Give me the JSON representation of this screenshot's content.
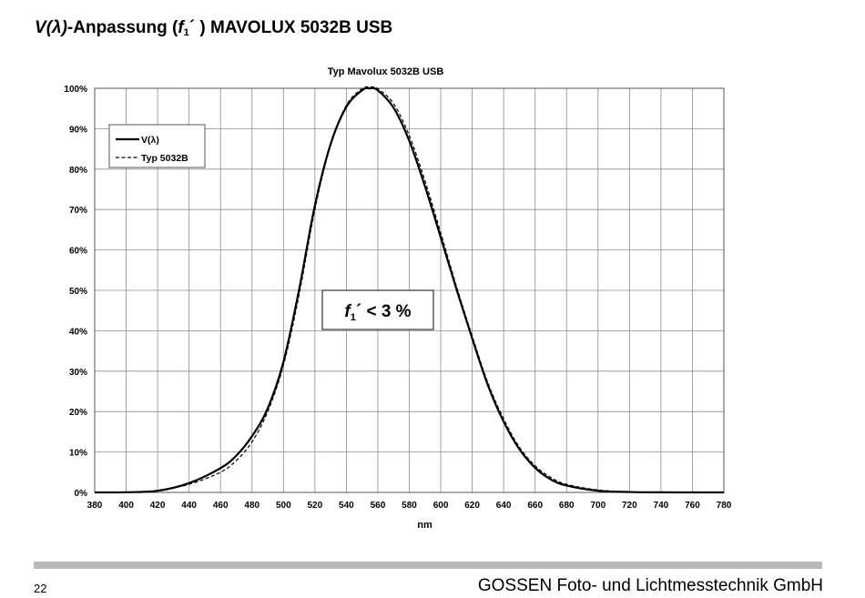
{
  "heading": {
    "v": "V",
    "lambda": "λ",
    "suffix_anpassung": "-Anpassung (",
    "f": "f",
    "sub": "1",
    "prime_close": "´ ) MAVOLUX 5032B USB"
  },
  "chart_data": {
    "type": "line",
    "title": "Typ Mavolux 5032B USB",
    "xlabel": "nm",
    "ylabel": "",
    "xlim": [
      380,
      780
    ],
    "ylim": [
      0,
      100
    ],
    "x_ticks": [
      380,
      400,
      420,
      440,
      460,
      480,
      500,
      520,
      540,
      560,
      580,
      600,
      620,
      640,
      660,
      680,
      700,
      720,
      740,
      760,
      780
    ],
    "y_ticks": [
      0,
      10,
      20,
      30,
      40,
      50,
      60,
      70,
      80,
      90,
      100
    ],
    "y_tick_suffix": "%",
    "grid": true,
    "legend_position": "top-left",
    "x": [
      380,
      400,
      420,
      440,
      460,
      470,
      480,
      490,
      500,
      510,
      520,
      530,
      540,
      550,
      555,
      560,
      570,
      580,
      590,
      600,
      610,
      620,
      630,
      640,
      650,
      660,
      670,
      680,
      700,
      720,
      740,
      760,
      780
    ],
    "series": [
      {
        "name": "V(λ)",
        "style": "solid",
        "values": [
          0,
          0.04,
          0.4,
          2.3,
          6,
          9.1,
          13.9,
          20.8,
          32.3,
          50.3,
          71,
          86.2,
          95.4,
          99.5,
          100,
          99.5,
          95.2,
          87,
          75.7,
          63.1,
          50.3,
          38.1,
          26.5,
          17.5,
          10.7,
          6.1,
          3.2,
          1.7,
          0.41,
          0.1,
          0.02,
          0.005,
          0
        ]
      },
      {
        "name": "Typ 5032B",
        "style": "dashed",
        "values": [
          0,
          0.05,
          0.5,
          2,
          5,
          7.9,
          12.5,
          20,
          31.5,
          49,
          70,
          86,
          95.8,
          99.9,
          100.3,
          99.9,
          96.2,
          88.3,
          77.1,
          64.2,
          51,
          38.7,
          27.1,
          18.2,
          11.2,
          6.6,
          3.7,
          2,
          0.6,
          0.15,
          0.03,
          0.01,
          0
        ]
      }
    ],
    "annotation": {
      "f": "f",
      "sub": "1",
      "rest": "´ < 3 %"
    }
  },
  "footer": {
    "page_number": "22",
    "company": "GOSSEN Foto- und Lichtmesstechnik GmbH"
  }
}
